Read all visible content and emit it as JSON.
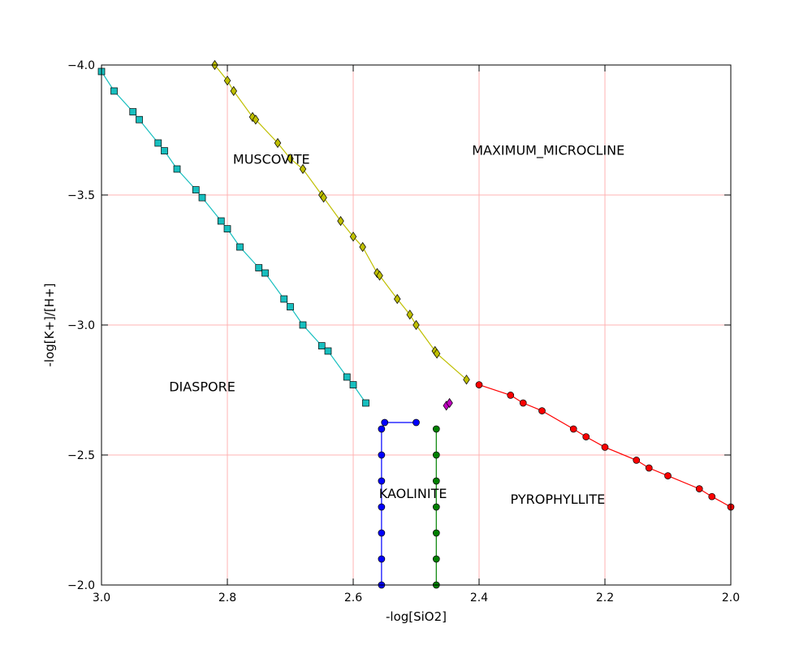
{
  "chart_data": {
    "type": "scatter",
    "xlabel": "-log[SiO2]",
    "ylabel": "-log[K+]/[H+]",
    "xlim": [
      3.0,
      2.0
    ],
    "ylim": [
      -2.0,
      -4.0
    ],
    "x_ticks": [
      3.0,
      2.8,
      2.6,
      2.4,
      2.2,
      2.0
    ],
    "x_tick_labels": [
      "3.0",
      "2.8",
      "2.6",
      "2.4",
      "2.2",
      "2.0"
    ],
    "y_ticks": [
      -4.0,
      -3.5,
      -3.0,
      -2.5,
      -2.0
    ],
    "y_tick_labels": [
      "−4.0",
      "−3.5",
      "−3.0",
      "−2.5",
      "−2.0"
    ],
    "grid": true,
    "grid_color": "#ffb3b3",
    "region_labels": [
      {
        "text": "MUSCOVITE",
        "x": 2.73,
        "y": -3.62
      },
      {
        "text": "MAXIMUM_MICROCLINE",
        "x": 2.29,
        "y": -3.655
      },
      {
        "text": "DIASPORE",
        "x": 2.84,
        "y": -2.745
      },
      {
        "text": "KAOLINITE",
        "x": 2.505,
        "y": -2.335
      },
      {
        "text": "PYROPHYLLITE",
        "x": 2.275,
        "y": -2.312
      }
    ],
    "series": [
      {
        "marker": "square",
        "color": "#17bfbf",
        "x": [
          3.0,
          2.98,
          2.95,
          2.94,
          2.91,
          2.9,
          2.88,
          2.85,
          2.84,
          2.81,
          2.8,
          2.78,
          2.75,
          2.74,
          2.71,
          2.7,
          2.68,
          2.65,
          2.64,
          2.61,
          2.6,
          2.58
        ],
        "y": [
          -3.975,
          -3.9,
          -3.82,
          -3.79,
          -3.7,
          -3.67,
          -3.6,
          -3.52,
          -3.49,
          -3.4,
          -3.37,
          -3.3,
          -3.22,
          -3.2,
          -3.1,
          -3.07,
          -3.0,
          -2.92,
          -2.9,
          -2.8,
          -2.77,
          -2.7
        ]
      },
      {
        "marker": "diamond",
        "color": "#bfbf00",
        "x": [
          2.82,
          2.8,
          2.79,
          2.76,
          2.755,
          2.72,
          2.7,
          2.68,
          2.65,
          2.647,
          2.62,
          2.6,
          2.585,
          2.562,
          2.558,
          2.53,
          2.51,
          2.5,
          2.47,
          2.467,
          2.42
        ],
        "y": [
          -4.0,
          -3.94,
          -3.9,
          -3.8,
          -3.79,
          -3.7,
          -3.64,
          -3.6,
          -3.5,
          -3.49,
          -3.4,
          -3.34,
          -3.3,
          -3.2,
          -3.19,
          -3.1,
          -3.04,
          -3.0,
          -2.9,
          -2.89,
          -2.79
        ]
      },
      {
        "marker": "circle",
        "color": "#ff0000",
        "x": [
          2.4,
          2.35,
          2.33,
          2.3,
          2.25,
          2.23,
          2.2,
          2.15,
          2.13,
          2.1,
          2.05,
          2.03,
          2.0
        ],
        "y": [
          -2.77,
          -2.73,
          -2.7,
          -2.67,
          -2.6,
          -2.57,
          -2.53,
          -2.48,
          -2.45,
          -2.42,
          -2.37,
          -2.34,
          -2.3
        ]
      },
      {
        "marker": "circle",
        "color": "#0000ff",
        "x": [
          2.5,
          2.55,
          2.555,
          2.555,
          2.555,
          2.555,
          2.555,
          2.555,
          2.555
        ],
        "y": [
          -2.625,
          -2.625,
          -2.6,
          -2.5,
          -2.4,
          -2.3,
          -2.2,
          -2.1,
          -2.0
        ]
      },
      {
        "marker": "circle",
        "color": "#008000",
        "x": [
          2.468,
          2.468,
          2.468,
          2.468,
          2.468,
          2.468,
          2.468
        ],
        "y": [
          -2.6,
          -2.5,
          -2.4,
          -2.3,
          -2.2,
          -2.1,
          -2.0
        ]
      },
      {
        "marker": "diamond",
        "color": "#bf00bf",
        "x": [
          2.452,
          2.447
        ],
        "y": [
          -2.69,
          -2.7
        ]
      }
    ]
  }
}
